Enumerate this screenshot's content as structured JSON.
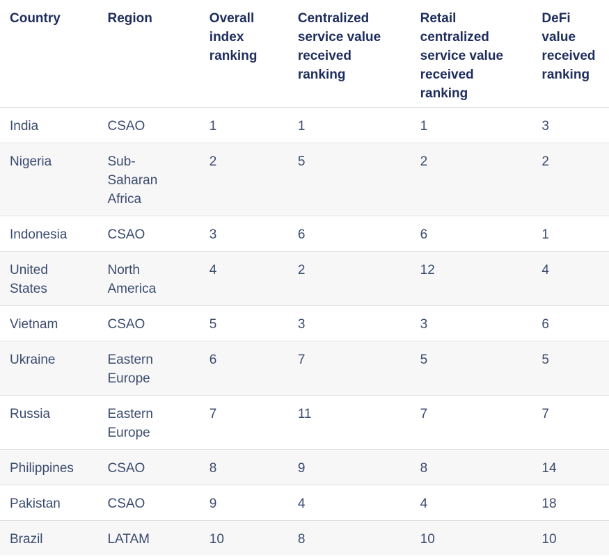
{
  "colors": {
    "header_text": "#1e2d5c",
    "body_text": "#3b4b6e",
    "stripe_row_bg": "#f7f7f8",
    "row_border": "#e2e2e4",
    "page_bg": "#ffffff"
  },
  "chart_data": {
    "type": "table",
    "columns": [
      "Country",
      "Region",
      "Overall index ranking",
      "Centralized service value received ranking",
      "Retail centralized service value received ranking",
      "DeFi value received ranking"
    ],
    "rows": [
      [
        "India",
        "CSAO",
        1,
        1,
        1,
        3
      ],
      [
        "Nigeria",
        "Sub-Saharan Africa",
        2,
        5,
        2,
        2
      ],
      [
        "Indonesia",
        "CSAO",
        3,
        6,
        6,
        1
      ],
      [
        "United States",
        "North America",
        4,
        2,
        12,
        4
      ],
      [
        "Vietnam",
        "CSAO",
        5,
        3,
        3,
        6
      ],
      [
        "Ukraine",
        "Eastern Europe",
        6,
        7,
        5,
        5
      ],
      [
        "Russia",
        "Eastern Europe",
        7,
        11,
        7,
        7
      ],
      [
        "Philippines",
        "CSAO",
        8,
        9,
        8,
        14
      ],
      [
        "Pakistan",
        "CSAO",
        9,
        4,
        4,
        18
      ],
      [
        "Brazil",
        "LATAM",
        10,
        8,
        10,
        10
      ]
    ],
    "layout_hints": {
      "striped_rows": true,
      "stripe_on": "even",
      "header_position": "top"
    }
  }
}
